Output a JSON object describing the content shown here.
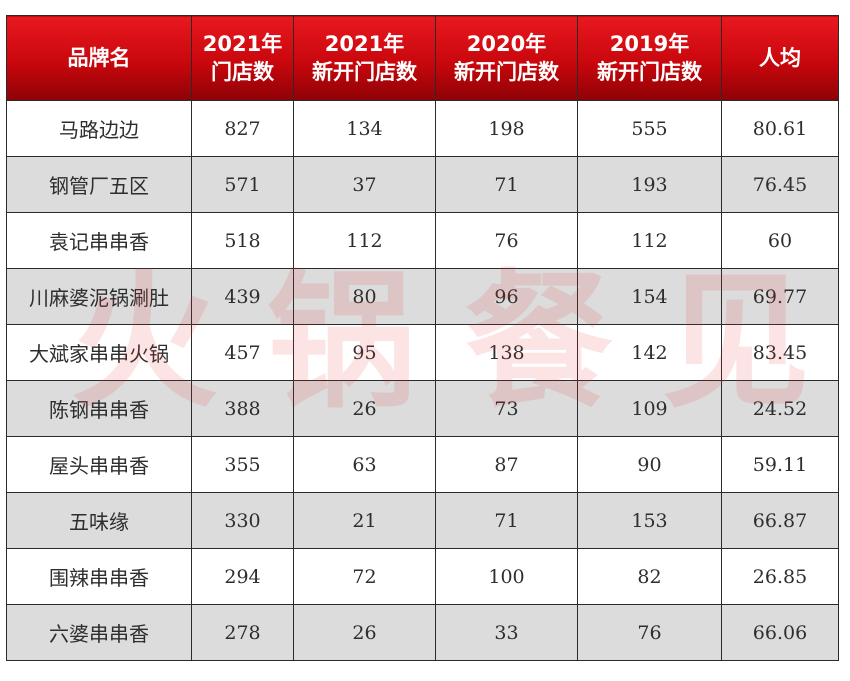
{
  "headers": [
    {
      "line1": "品牌名",
      "line2": ""
    },
    {
      "line1": "2021年",
      "line2": "门店数"
    },
    {
      "line1": "2021年",
      "line2": "新开门店数"
    },
    {
      "line1": "2020年",
      "line2": "新开门店数"
    },
    {
      "line1": "2019年",
      "line2": "新开门店数"
    },
    {
      "line1": "人均",
      "line2": ""
    }
  ],
  "rows": [
    [
      "马路边边",
      "827",
      "134",
      "198",
      "555",
      "80.61"
    ],
    [
      "钢管厂五区",
      "571",
      "37",
      "71",
      "193",
      "76.45"
    ],
    [
      "袁记串串香",
      "518",
      "112",
      "76",
      "112",
      "60"
    ],
    [
      "川麻婆泥锅涮肚",
      "439",
      "80",
      "96",
      "154",
      "69.77"
    ],
    [
      "大斌家串串火锅",
      "457",
      "95",
      "138",
      "142",
      "83.45"
    ],
    [
      "陈钢串串香",
      "388",
      "26",
      "73",
      "109",
      "24.52"
    ],
    [
      "屋头串串香",
      "355",
      "63",
      "87",
      "90",
      "59.11"
    ],
    [
      "五味缘",
      "330",
      "21",
      "71",
      "153",
      "66.87"
    ],
    [
      "围辣串串香",
      "294",
      "72",
      "100",
      "82",
      "26.85"
    ],
    [
      "六婆串串香",
      "278",
      "26",
      "33",
      "76",
      "66.06"
    ]
  ],
  "watermark": {
    "chars": [
      "火",
      "锅",
      "餐",
      "见"
    ]
  },
  "colors": {
    "header_top": "#e8191f",
    "header_bottom": "#8e0206",
    "stripe": "#dcdcdc",
    "border": "#2b2b2b"
  }
}
